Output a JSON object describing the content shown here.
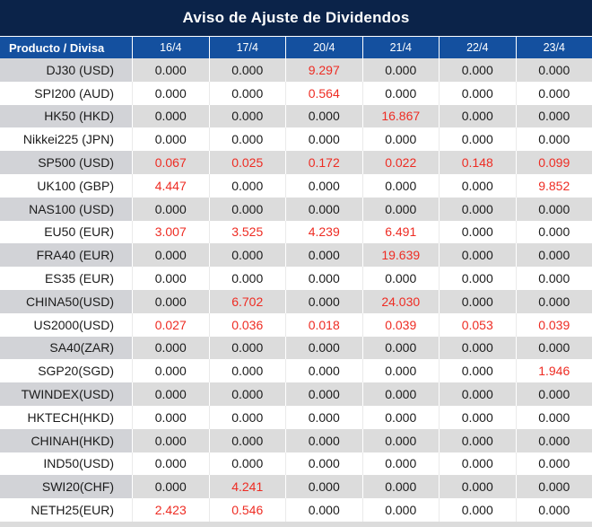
{
  "title": "Aviso de Ajuste de Dividendos",
  "colors": {
    "title_bg": "#0b2349",
    "header_bg": "#14509f",
    "stripe_bg": "#dcdcdc",
    "stripe_label_bg": "#d2d3d7",
    "red": "#ee2c23",
    "text": "#1b1b1b"
  },
  "table": {
    "product_header": "Producto / Divisa",
    "date_headers": [
      "16/4",
      "17/4",
      "20/4",
      "21/4",
      "22/4",
      "23/4"
    ],
    "rows": [
      {
        "product": "DJ30 (USD)",
        "values": [
          "0.000",
          "0.000",
          "9.297",
          "0.000",
          "0.000",
          "0.000"
        ],
        "red": [
          false,
          false,
          true,
          false,
          false,
          false
        ]
      },
      {
        "product": "SPI200 (AUD)",
        "values": [
          "0.000",
          "0.000",
          "0.564",
          "0.000",
          "0.000",
          "0.000"
        ],
        "red": [
          false,
          false,
          true,
          false,
          false,
          false
        ]
      },
      {
        "product": "HK50 (HKD)",
        "values": [
          "0.000",
          "0.000",
          "0.000",
          "16.867",
          "0.000",
          "0.000"
        ],
        "red": [
          false,
          false,
          false,
          true,
          false,
          false
        ]
      },
      {
        "product": "Nikkei225 (JPN)",
        "values": [
          "0.000",
          "0.000",
          "0.000",
          "0.000",
          "0.000",
          "0.000"
        ],
        "red": [
          false,
          false,
          false,
          false,
          false,
          false
        ]
      },
      {
        "product": "SP500 (USD)",
        "values": [
          "0.067",
          "0.025",
          "0.172",
          "0.022",
          "0.148",
          "0.099"
        ],
        "red": [
          true,
          true,
          true,
          true,
          true,
          true
        ]
      },
      {
        "product": "UK100 (GBP)",
        "values": [
          "4.447",
          "0.000",
          "0.000",
          "0.000",
          "0.000",
          "9.852"
        ],
        "red": [
          true,
          false,
          false,
          false,
          false,
          true
        ]
      },
      {
        "product": "NAS100 (USD)",
        "values": [
          "0.000",
          "0.000",
          "0.000",
          "0.000",
          "0.000",
          "0.000"
        ],
        "red": [
          false,
          false,
          false,
          false,
          false,
          false
        ]
      },
      {
        "product": "EU50 (EUR)",
        "values": [
          "3.007",
          "3.525",
          "4.239",
          "6.491",
          "0.000",
          "0.000"
        ],
        "red": [
          true,
          true,
          true,
          true,
          false,
          false
        ]
      },
      {
        "product": "FRA40 (EUR)",
        "values": [
          "0.000",
          "0.000",
          "0.000",
          "19.639",
          "0.000",
          "0.000"
        ],
        "red": [
          false,
          false,
          false,
          true,
          false,
          false
        ]
      },
      {
        "product": "ES35 (EUR)",
        "values": [
          "0.000",
          "0.000",
          "0.000",
          "0.000",
          "0.000",
          "0.000"
        ],
        "red": [
          false,
          false,
          false,
          false,
          false,
          false
        ]
      },
      {
        "product": "CHINA50(USD)",
        "values": [
          "0.000",
          "6.702",
          "0.000",
          "24.030",
          "0.000",
          "0.000"
        ],
        "red": [
          false,
          true,
          false,
          true,
          false,
          false
        ]
      },
      {
        "product": "US2000(USD)",
        "values": [
          "0.027",
          "0.036",
          "0.018",
          "0.039",
          "0.053",
          "0.039"
        ],
        "red": [
          true,
          true,
          true,
          true,
          true,
          true
        ]
      },
      {
        "product": "SA40(ZAR)",
        "values": [
          "0.000",
          "0.000",
          "0.000",
          "0.000",
          "0.000",
          "0.000"
        ],
        "red": [
          false,
          false,
          false,
          false,
          false,
          false
        ]
      },
      {
        "product": "SGP20(SGD)",
        "values": [
          "0.000",
          "0.000",
          "0.000",
          "0.000",
          "0.000",
          "1.946"
        ],
        "red": [
          false,
          false,
          false,
          false,
          false,
          true
        ]
      },
      {
        "product": "TWINDEX(USD)",
        "values": [
          "0.000",
          "0.000",
          "0.000",
          "0.000",
          "0.000",
          "0.000"
        ],
        "red": [
          false,
          false,
          false,
          false,
          false,
          false
        ]
      },
      {
        "product": "HKTECH(HKD)",
        "values": [
          "0.000",
          "0.000",
          "0.000",
          "0.000",
          "0.000",
          "0.000"
        ],
        "red": [
          false,
          false,
          false,
          false,
          false,
          false
        ]
      },
      {
        "product": "CHINAH(HKD)",
        "values": [
          "0.000",
          "0.000",
          "0.000",
          "0.000",
          "0.000",
          "0.000"
        ],
        "red": [
          false,
          false,
          false,
          false,
          false,
          false
        ]
      },
      {
        "product": "IND50(USD)",
        "values": [
          "0.000",
          "0.000",
          "0.000",
          "0.000",
          "0.000",
          "0.000"
        ],
        "red": [
          false,
          false,
          false,
          false,
          false,
          false
        ]
      },
      {
        "product": "SWI20(CHF)",
        "values": [
          "0.000",
          "4.241",
          "0.000",
          "0.000",
          "0.000",
          "0.000"
        ],
        "red": [
          false,
          true,
          false,
          false,
          false,
          false
        ]
      },
      {
        "product": "NETH25(EUR)",
        "values": [
          "2.423",
          "0.546",
          "0.000",
          "0.000",
          "0.000",
          "0.000"
        ],
        "red": [
          true,
          true,
          false,
          false,
          false,
          false
        ]
      }
    ]
  }
}
